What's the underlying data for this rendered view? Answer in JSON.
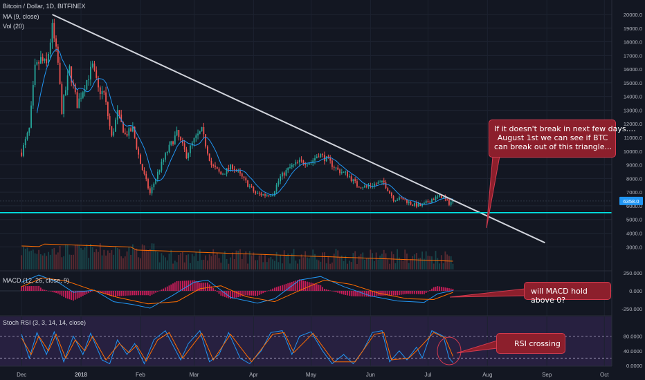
{
  "header": {
    "symbol": "Bitcoin / Dollar, 1D, BITFINEX",
    "ma_label": "MA (9, close)",
    "vol_label": "Vol (20)"
  },
  "panes": {
    "macd_label": "MACD (12, 26, close, 9)",
    "stoch_label": "Stoch RSI (3, 3, 14, 14, close)"
  },
  "annotations": {
    "triangle_note": [
      "If it doesn't break in next few days....",
      "August 1st we can see if BTC",
      "can break out of this triangle..."
    ],
    "macd_note": "will MACD hold above 0?",
    "rsi_note": "RSI crossing"
  },
  "price_tag": "6358.0",
  "colors": {
    "background": "#131722",
    "up": "#26a69a",
    "down": "#ef5350",
    "ma": "#2196f3",
    "trendline": "#d1d4dc",
    "support": "#00e5e5",
    "note_fill": "#8c1f2c",
    "rsi_band": "#5d3a8e",
    "macd_signal": "#ff6d00",
    "macd_hist": "#e91e63"
  },
  "chart_data": [
    {
      "type": "candlestick",
      "title": "Bitcoin / Dollar, 1D, BITFINEX",
      "x": [
        "Dec",
        "2018",
        "Feb",
        "Mar",
        "Apr",
        "May",
        "Jun",
        "Jul",
        "Aug",
        "Sep",
        "Oct"
      ],
      "y_ticks": [
        3000,
        4000,
        5000,
        6000,
        7000,
        8000,
        9000,
        10000,
        11000,
        12000,
        13000,
        14000,
        15000,
        16000,
        17000,
        18000,
        19000,
        20000
      ],
      "y_tick_labels": [
        "3000.0",
        "4000.0",
        "5000.0",
        "6000.0",
        "7000.0",
        "8000.0",
        "9000.0",
        "10000.0",
        "11000.0",
        "12000.0",
        "13000.0",
        "14000.0",
        "15000.0",
        "16000.0",
        "17000.0",
        "18000.0",
        "19000.0",
        "20000.0"
      ],
      "ylim": [
        3000,
        20500
      ],
      "price_path": [
        {
          "x": "2017-12-01",
          "y": 9900
        },
        {
          "x": "2017-12-05",
          "y": 11600
        },
        {
          "x": "2017-12-08",
          "y": 16000
        },
        {
          "x": "2017-12-11",
          "y": 16700
        },
        {
          "x": "2017-12-14",
          "y": 16300
        },
        {
          "x": "2017-12-17",
          "y": 19000
        },
        {
          "x": "2017-12-20",
          "y": 16400
        },
        {
          "x": "2017-12-22",
          "y": 13000
        },
        {
          "x": "2017-12-26",
          "y": 16000
        },
        {
          "x": "2017-12-30",
          "y": 13400
        },
        {
          "x": "2018-01-04",
          "y": 15200
        },
        {
          "x": "2018-01-07",
          "y": 16200
        },
        {
          "x": "2018-01-10",
          "y": 14500
        },
        {
          "x": "2018-01-13",
          "y": 14200
        },
        {
          "x": "2018-01-17",
          "y": 11000
        },
        {
          "x": "2018-01-20",
          "y": 12800
        },
        {
          "x": "2018-01-24",
          "y": 11200
        },
        {
          "x": "2018-01-28",
          "y": 11600
        },
        {
          "x": "2018-02-01",
          "y": 9100
        },
        {
          "x": "2018-02-06",
          "y": 6900
        },
        {
          "x": "2018-02-10",
          "y": 8400
        },
        {
          "x": "2018-02-15",
          "y": 10000
        },
        {
          "x": "2018-02-20",
          "y": 11300
        },
        {
          "x": "2018-02-25",
          "y": 9700
        },
        {
          "x": "2018-03-01",
          "y": 10800
        },
        {
          "x": "2018-03-05",
          "y": 11500
        },
        {
          "x": "2018-03-10",
          "y": 9000
        },
        {
          "x": "2018-03-15",
          "y": 8300
        },
        {
          "x": "2018-03-21",
          "y": 8900
        },
        {
          "x": "2018-03-27",
          "y": 7900
        },
        {
          "x": "2018-04-02",
          "y": 6900
        },
        {
          "x": "2018-04-07",
          "y": 6800
        },
        {
          "x": "2018-04-11",
          "y": 6900
        },
        {
          "x": "2018-04-15",
          "y": 8100
        },
        {
          "x": "2018-04-20",
          "y": 8800
        },
        {
          "x": "2018-04-25",
          "y": 9200
        },
        {
          "x": "2018-05-01",
          "y": 9200
        },
        {
          "x": "2018-05-05",
          "y": 9800
        },
        {
          "x": "2018-05-10",
          "y": 9300
        },
        {
          "x": "2018-05-15",
          "y": 8600
        },
        {
          "x": "2018-05-20",
          "y": 8300
        },
        {
          "x": "2018-05-25",
          "y": 7500
        },
        {
          "x": "2018-05-30",
          "y": 7400
        },
        {
          "x": "2018-06-03",
          "y": 7600
        },
        {
          "x": "2018-06-08",
          "y": 7700
        },
        {
          "x": "2018-06-13",
          "y": 6500
        },
        {
          "x": "2018-06-18",
          "y": 6500
        },
        {
          "x": "2018-06-23",
          "y": 6100
        },
        {
          "x": "2018-06-28",
          "y": 6000
        },
        {
          "x": "2018-07-03",
          "y": 6500
        },
        {
          "x": "2018-07-08",
          "y": 6700
        },
        {
          "x": "2018-07-12",
          "y": 6200
        },
        {
          "x": "2018-07-14",
          "y": 6358
        }
      ],
      "trendline": {
        "from": {
          "x": "2017-12-17",
          "y": 20000
        },
        "to": {
          "x": "2018-08-31",
          "y": 3300
        }
      },
      "support_level": 5500,
      "last_price": 6358
    },
    {
      "type": "line",
      "title": "MACD (12, 26, close, 9)",
      "y_tick_labels": [
        "250.000",
        "0.000",
        "-250.000"
      ],
      "ylim": [
        -270,
        270
      ],
      "macd_series": [
        {
          "x": "2017-12-01",
          "y": 120
        },
        {
          "x": "2017-12-10",
          "y": 220
        },
        {
          "x": "2017-12-20",
          "y": 120
        },
        {
          "x": "2017-12-28",
          "y": -20
        },
        {
          "x": "2018-01-08",
          "y": 10
        },
        {
          "x": "2018-01-18",
          "y": -150
        },
        {
          "x": "2018-01-28",
          "y": -190
        },
        {
          "x": "2018-02-06",
          "y": -240
        },
        {
          "x": "2018-02-18",
          "y": -60
        },
        {
          "x": "2018-03-01",
          "y": 120
        },
        {
          "x": "2018-03-08",
          "y": 150
        },
        {
          "x": "2018-03-20",
          "y": -90
        },
        {
          "x": "2018-04-03",
          "y": -170
        },
        {
          "x": "2018-04-12",
          "y": -110
        },
        {
          "x": "2018-04-25",
          "y": 150
        },
        {
          "x": "2018-05-06",
          "y": 200
        },
        {
          "x": "2018-05-18",
          "y": 60
        },
        {
          "x": "2018-06-01",
          "y": -70
        },
        {
          "x": "2018-06-15",
          "y": -140
        },
        {
          "x": "2018-06-29",
          "y": -160
        },
        {
          "x": "2018-07-06",
          "y": -40
        },
        {
          "x": "2018-07-14",
          "y": 5
        }
      ],
      "signal_series": [
        {
          "x": "2017-12-01",
          "y": 60
        },
        {
          "x": "2017-12-12",
          "y": 180
        },
        {
          "x": "2017-12-24",
          "y": 140
        },
        {
          "x": "2018-01-06",
          "y": 20
        },
        {
          "x": "2018-01-20",
          "y": -90
        },
        {
          "x": "2018-02-05",
          "y": -180
        },
        {
          "x": "2018-02-20",
          "y": -150
        },
        {
          "x": "2018-03-04",
          "y": 30
        },
        {
          "x": "2018-03-15",
          "y": 70
        },
        {
          "x": "2018-03-28",
          "y": -80
        },
        {
          "x": "2018-04-12",
          "y": -150
        },
        {
          "x": "2018-04-28",
          "y": 40
        },
        {
          "x": "2018-05-08",
          "y": 150
        },
        {
          "x": "2018-05-22",
          "y": 90
        },
        {
          "x": "2018-06-05",
          "y": -30
        },
        {
          "x": "2018-06-20",
          "y": -110
        },
        {
          "x": "2018-07-04",
          "y": -120
        },
        {
          "x": "2018-07-14",
          "y": -20
        }
      ]
    },
    {
      "type": "line",
      "title": "Stoch RSI (3, 3, 14, 14, close)",
      "y_tick_labels": [
        "80.0000",
        "40.0000",
        "0.0000"
      ],
      "ylim": [
        0,
        100
      ],
      "band": [
        20,
        80
      ],
      "k_series": [
        {
          "x": "2017-12-01",
          "y": 85
        },
        {
          "x": "2017-12-05",
          "y": 20
        },
        {
          "x": "2017-12-09",
          "y": 90
        },
        {
          "x": "2017-12-14",
          "y": 30
        },
        {
          "x": "2017-12-18",
          "y": 92
        },
        {
          "x": "2017-12-23",
          "y": 10
        },
        {
          "x": "2017-12-28",
          "y": 80
        },
        {
          "x": "2018-01-02",
          "y": 30
        },
        {
          "x": "2018-01-06",
          "y": 88
        },
        {
          "x": "2018-01-12",
          "y": 15
        },
        {
          "x": "2018-01-16",
          "y": 5
        },
        {
          "x": "2018-01-20",
          "y": 70
        },
        {
          "x": "2018-01-25",
          "y": 30
        },
        {
          "x": "2018-01-29",
          "y": 60
        },
        {
          "x": "2018-02-03",
          "y": 5
        },
        {
          "x": "2018-02-08",
          "y": 70
        },
        {
          "x": "2018-02-14",
          "y": 95
        },
        {
          "x": "2018-02-22",
          "y": 15
        },
        {
          "x": "2018-02-26",
          "y": 60
        },
        {
          "x": "2018-03-04",
          "y": 95
        },
        {
          "x": "2018-03-09",
          "y": 10
        },
        {
          "x": "2018-03-14",
          "y": 30
        },
        {
          "x": "2018-03-19",
          "y": 90
        },
        {
          "x": "2018-03-25",
          "y": 20
        },
        {
          "x": "2018-03-30",
          "y": 5
        },
        {
          "x": "2018-04-05",
          "y": 40
        },
        {
          "x": "2018-04-10",
          "y": 90
        },
        {
          "x": "2018-04-16",
          "y": 95
        },
        {
          "x": "2018-04-21",
          "y": 30
        },
        {
          "x": "2018-04-25",
          "y": 80
        },
        {
          "x": "2018-05-01",
          "y": 92
        },
        {
          "x": "2018-05-07",
          "y": 40
        },
        {
          "x": "2018-05-12",
          "y": 5
        },
        {
          "x": "2018-05-18",
          "y": 30
        },
        {
          "x": "2018-05-23",
          "y": 5
        },
        {
          "x": "2018-05-28",
          "y": 40
        },
        {
          "x": "2018-06-02",
          "y": 90
        },
        {
          "x": "2018-06-07",
          "y": 95
        },
        {
          "x": "2018-06-11",
          "y": 10
        },
        {
          "x": "2018-06-16",
          "y": 40
        },
        {
          "x": "2018-06-20",
          "y": 15
        },
        {
          "x": "2018-06-25",
          "y": 50
        },
        {
          "x": "2018-06-28",
          "y": 20
        },
        {
          "x": "2018-07-03",
          "y": 95
        },
        {
          "x": "2018-07-09",
          "y": 80
        },
        {
          "x": "2018-07-12",
          "y": 20
        },
        {
          "x": "2018-07-14",
          "y": 8
        }
      ],
      "d_series": [
        {
          "x": "2017-12-01",
          "y": 75
        },
        {
          "x": "2017-12-06",
          "y": 30
        },
        {
          "x": "2017-12-10",
          "y": 80
        },
        {
          "x": "2017-12-15",
          "y": 40
        },
        {
          "x": "2017-12-19",
          "y": 85
        },
        {
          "x": "2017-12-24",
          "y": 20
        },
        {
          "x": "2017-12-29",
          "y": 70
        },
        {
          "x": "2018-01-03",
          "y": 40
        },
        {
          "x": "2018-01-07",
          "y": 80
        },
        {
          "x": "2018-01-14",
          "y": 15
        },
        {
          "x": "2018-01-21",
          "y": 60
        },
        {
          "x": "2018-01-26",
          "y": 35
        },
        {
          "x": "2018-01-30",
          "y": 55
        },
        {
          "x": "2018-02-04",
          "y": 12
        },
        {
          "x": "2018-02-10",
          "y": 70
        },
        {
          "x": "2018-02-16",
          "y": 90
        },
        {
          "x": "2018-02-23",
          "y": 20
        },
        {
          "x": "2018-03-05",
          "y": 88
        },
        {
          "x": "2018-03-11",
          "y": 15
        },
        {
          "x": "2018-03-20",
          "y": 85
        },
        {
          "x": "2018-03-31",
          "y": 10
        },
        {
          "x": "2018-04-11",
          "y": 85
        },
        {
          "x": "2018-04-17",
          "y": 90
        },
        {
          "x": "2018-04-22",
          "y": 35
        },
        {
          "x": "2018-05-02",
          "y": 88
        },
        {
          "x": "2018-05-13",
          "y": 10
        },
        {
          "x": "2018-05-24",
          "y": 10
        },
        {
          "x": "2018-06-03",
          "y": 85
        },
        {
          "x": "2018-06-08",
          "y": 90
        },
        {
          "x": "2018-06-12",
          "y": 15
        },
        {
          "x": "2018-06-21",
          "y": 20
        },
        {
          "x": "2018-06-26",
          "y": 45
        },
        {
          "x": "2018-07-04",
          "y": 90
        },
        {
          "x": "2018-07-10",
          "y": 75
        },
        {
          "x": "2018-07-14",
          "y": 25
        }
      ]
    }
  ]
}
